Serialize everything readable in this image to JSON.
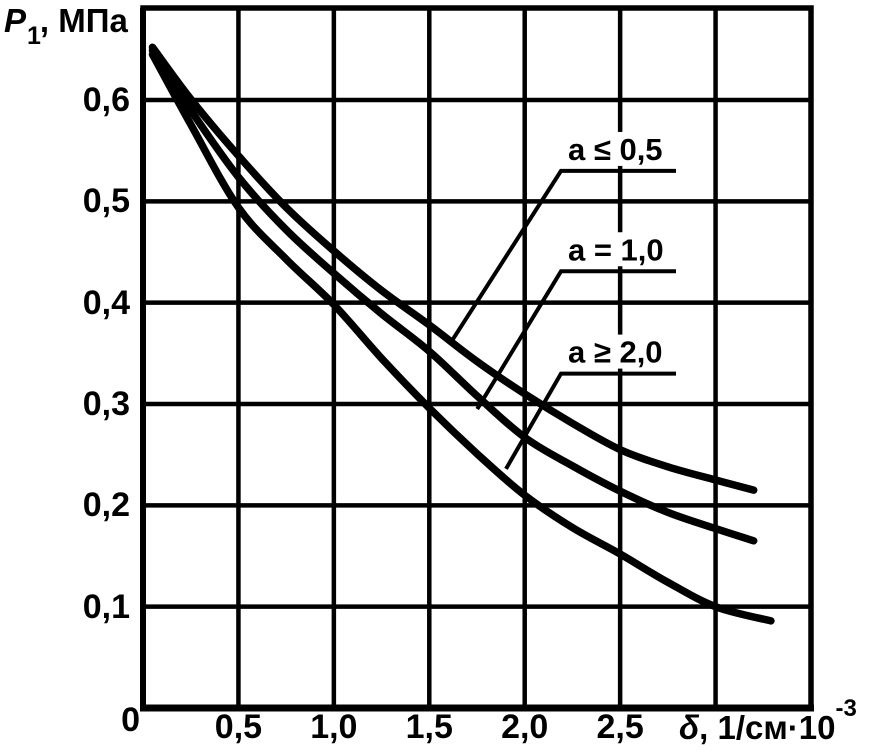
{
  "colors": {
    "foreground": "#000000",
    "background": "#ffffff"
  },
  "axes": {
    "y": {
      "symbol": "P",
      "subscript": "1",
      "unit": ", МПа"
    },
    "x": {
      "symbol": "δ",
      "unit": ", 1/см·10",
      "exponent": "-3"
    }
  },
  "chart_data": {
    "type": "line",
    "title": "",
    "xlabel": "δ, 1/см·10⁻³",
    "ylabel": "P₁, МПа",
    "xlim": [
      0,
      3.5
    ],
    "ylim": [
      0,
      0.69
    ],
    "grid": true,
    "x_ticks": [
      {
        "value": 0.5,
        "label": "0,5"
      },
      {
        "value": 1.0,
        "label": "1,0"
      },
      {
        "value": 1.5,
        "label": "1,5"
      },
      {
        "value": 2.0,
        "label": "2,0"
      },
      {
        "value": 2.5,
        "label": "2,5"
      }
    ],
    "y_ticks": [
      {
        "value": 0.6,
        "label": "0,6"
      },
      {
        "value": 0.5,
        "label": "0,5"
      },
      {
        "value": 0.4,
        "label": "0,4"
      },
      {
        "value": 0.3,
        "label": "0,3"
      },
      {
        "value": 0.2,
        "label": "0,2"
      },
      {
        "value": 0.1,
        "label": "0,1"
      },
      {
        "value": 0,
        "label": "0"
      }
    ],
    "x_gridlines": [
      0.5,
      1.0,
      1.5,
      2.0,
      2.5,
      3.0
    ],
    "y_gridlines": [
      0.1,
      0.2,
      0.3,
      0.4,
      0.5,
      0.6
    ],
    "series": [
      {
        "name": "a ≤ 0,5",
        "points": [
          [
            0.05,
            0.652
          ],
          [
            0.25,
            0.601
          ],
          [
            0.5,
            0.545
          ],
          [
            0.75,
            0.494
          ],
          [
            1.0,
            0.451
          ],
          [
            1.25,
            0.412
          ],
          [
            1.5,
            0.378
          ],
          [
            1.75,
            0.342
          ],
          [
            2.0,
            0.31
          ],
          [
            2.25,
            0.281
          ],
          [
            2.5,
            0.255
          ],
          [
            2.75,
            0.238
          ],
          [
            3.0,
            0.225
          ],
          [
            3.2,
            0.215
          ]
        ]
      },
      {
        "name": "a = 1,0",
        "points": [
          [
            0.05,
            0.649
          ],
          [
            0.25,
            0.59
          ],
          [
            0.5,
            0.524
          ],
          [
            0.75,
            0.472
          ],
          [
            1.0,
            0.429
          ],
          [
            1.25,
            0.389
          ],
          [
            1.5,
            0.352
          ],
          [
            1.75,
            0.308
          ],
          [
            2.0,
            0.267
          ],
          [
            2.25,
            0.239
          ],
          [
            2.5,
            0.214
          ],
          [
            2.75,
            0.193
          ],
          [
            3.0,
            0.177
          ],
          [
            3.2,
            0.165
          ]
        ]
      },
      {
        "name": "a ≥ 2,0",
        "points": [
          [
            0.05,
            0.645
          ],
          [
            0.25,
            0.576
          ],
          [
            0.5,
            0.494
          ],
          [
            0.75,
            0.443
          ],
          [
            1.0,
            0.398
          ],
          [
            1.25,
            0.345
          ],
          [
            1.5,
            0.296
          ],
          [
            1.75,
            0.251
          ],
          [
            2.0,
            0.21
          ],
          [
            2.25,
            0.178
          ],
          [
            2.5,
            0.152
          ],
          [
            2.75,
            0.124
          ],
          [
            3.0,
            0.1
          ],
          [
            3.29,
            0.086
          ]
        ]
      }
    ],
    "annotations": [
      {
        "text": "a ≤ 0,5",
        "label_x": 2.19,
        "label_y": 0.53,
        "arrow_x": 1.614,
        "arrow_y": 0.361
      },
      {
        "text": "a = 1,0",
        "label_x": 2.19,
        "label_y": 0.431,
        "arrow_x": 1.751,
        "arrow_y": 0.295
      },
      {
        "text": "a ≥ 2,0",
        "label_x": 2.19,
        "label_y": 0.33,
        "arrow_x": 1.902,
        "arrow_y": 0.236
      }
    ]
  }
}
